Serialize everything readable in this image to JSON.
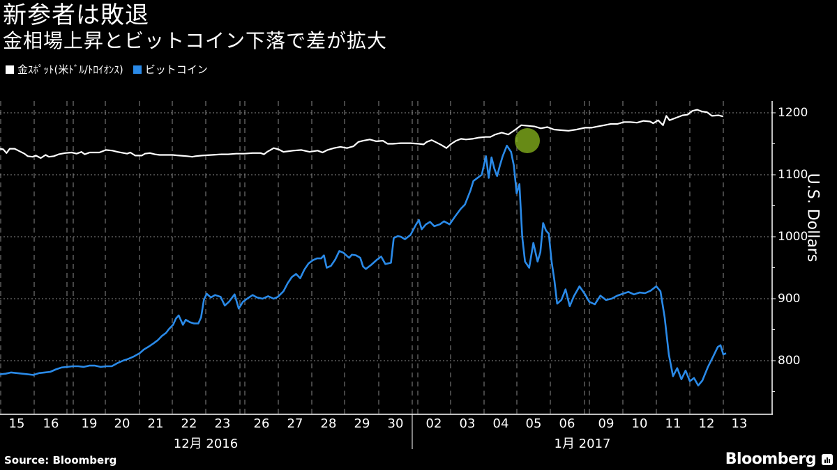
{
  "header": {
    "title": "新参者は敗退",
    "subtitle": "金相場上昇とビットコイン下落で差が拡大"
  },
  "legend": [
    {
      "label": "金ｽﾎﾟｯﾄ(米ﾄﾞﾙ/ﾄﾛｲｵﾝｽ)",
      "color": "#ffffff"
    },
    {
      "label": "ビットコイン",
      "color": "#2a8ae8"
    }
  ],
  "axis": {
    "ylabel": "U.S. Dollars",
    "yticks": [
      "1200",
      "1100",
      "1000",
      "900",
      "800"
    ],
    "xticks": [
      "15",
      "16",
      "19",
      "20",
      "21",
      "22",
      "23",
      "26",
      "27",
      "28",
      "29",
      "30",
      "02",
      "03",
      "04",
      "05",
      "06",
      "09",
      "10",
      "11",
      "12",
      "13"
    ],
    "months": [
      "12月 2016",
      "1月 2017"
    ]
  },
  "footer": {
    "source": "Source: Bloomberg",
    "brand": "Bloomberg"
  },
  "colors": {
    "background": "#000000",
    "gold_line": "#ffffff",
    "bitcoin_line": "#2a8ae8",
    "highlight": "#8ab81e",
    "grid": "#8a8a8a"
  },
  "chart_data": {
    "type": "line",
    "title": "新参者は敗退",
    "subtitle": "金相場上昇とビットコイン下落で差が拡大",
    "xlabel": "",
    "ylabel": "U.S. Dollars",
    "ylim": [
      735,
      1250
    ],
    "yticks": [
      800,
      900,
      1000,
      1100,
      1200
    ],
    "grid": true,
    "legend_position": "top-left",
    "categories": [
      "12/15",
      "12/16",
      "12/19",
      "12/20",
      "12/21",
      "12/22",
      "12/23",
      "12/26",
      "12/27",
      "12/28",
      "12/29",
      "12/30",
      "01/02",
      "01/03",
      "01/04",
      "01/05",
      "01/06",
      "01/09",
      "01/10",
      "01/11",
      "01/12",
      "01/13"
    ],
    "x_note": "x values are in trading-day units: 0 = start of 12/15, each integer = one trading day boundary",
    "series": [
      {
        "name": "金ｽﾎﾟｯﾄ(米ﾄﾞﾙ/ﾄﾛｲｵﾝｽ)",
        "color": "#ffffff",
        "points": [
          [
            0.0,
            1142
          ],
          [
            0.1,
            1141
          ],
          [
            0.2,
            1135
          ],
          [
            0.3,
            1142
          ],
          [
            0.45,
            1142
          ],
          [
            0.6,
            1138
          ],
          [
            0.75,
            1134
          ],
          [
            0.85,
            1130
          ],
          [
            1.0,
            1129
          ],
          [
            1.1,
            1131
          ],
          [
            1.25,
            1127
          ],
          [
            1.4,
            1132
          ],
          [
            1.5,
            1129
          ],
          [
            1.65,
            1130
          ],
          [
            1.8,
            1133
          ],
          [
            2.0,
            1135
          ],
          [
            2.2,
            1136
          ],
          [
            2.35,
            1134
          ],
          [
            2.5,
            1137
          ],
          [
            2.6,
            1133
          ],
          [
            2.75,
            1136
          ],
          [
            2.9,
            1136
          ],
          [
            3.05,
            1136
          ],
          [
            3.25,
            1140
          ],
          [
            3.45,
            1139
          ],
          [
            3.6,
            1137
          ],
          [
            3.8,
            1135
          ],
          [
            3.9,
            1134
          ],
          [
            4.0,
            1136
          ],
          [
            4.15,
            1131
          ],
          [
            4.35,
            1131
          ],
          [
            4.45,
            1134
          ],
          [
            4.6,
            1135
          ],
          [
            4.75,
            1133
          ],
          [
            4.9,
            1132
          ],
          [
            5.05,
            1132
          ],
          [
            5.3,
            1132
          ],
          [
            5.5,
            1131
          ],
          [
            5.75,
            1130
          ],
          [
            5.9,
            1129
          ],
          [
            6.0,
            1130
          ],
          [
            6.2,
            1131
          ],
          [
            6.5,
            1132
          ],
          [
            6.8,
            1133
          ],
          [
            7.0,
            1133
          ],
          [
            7.25,
            1134
          ],
          [
            7.5,
            1134
          ],
          [
            7.75,
            1135
          ],
          [
            8.0,
            1135
          ],
          [
            8.1,
            1133
          ],
          [
            8.2,
            1137
          ],
          [
            8.3,
            1140
          ],
          [
            8.4,
            1143
          ],
          [
            8.55,
            1141
          ],
          [
            8.7,
            1137
          ],
          [
            9.0,
            1139
          ],
          [
            9.25,
            1140
          ],
          [
            9.5,
            1137
          ],
          [
            9.75,
            1139
          ],
          [
            9.9,
            1136
          ],
          [
            10.05,
            1140
          ],
          [
            10.25,
            1143
          ],
          [
            10.45,
            1145
          ],
          [
            10.65,
            1143
          ],
          [
            10.85,
            1146
          ],
          [
            11.0,
            1153
          ],
          [
            11.15,
            1155
          ],
          [
            11.35,
            1157
          ],
          [
            11.55,
            1154
          ],
          [
            11.75,
            1155
          ],
          [
            11.9,
            1150
          ],
          [
            12.05,
            1150
          ],
          [
            12.3,
            1151
          ],
          [
            12.6,
            1151
          ],
          [
            12.85,
            1150
          ],
          [
            13.0,
            1149
          ],
          [
            13.1,
            1153
          ],
          [
            13.25,
            1156
          ],
          [
            13.4,
            1152
          ],
          [
            13.55,
            1148
          ],
          [
            13.7,
            1143
          ],
          [
            13.85,
            1150
          ],
          [
            14.0,
            1155
          ],
          [
            14.15,
            1158
          ],
          [
            14.3,
            1157
          ],
          [
            14.5,
            1158
          ],
          [
            14.7,
            1160
          ],
          [
            14.9,
            1161
          ],
          [
            15.05,
            1161
          ],
          [
            15.2,
            1165
          ],
          [
            15.4,
            1168
          ],
          [
            15.6,
            1165
          ],
          [
            15.8,
            1172
          ],
          [
            16.0,
            1180
          ],
          [
            16.2,
            1179
          ],
          [
            16.4,
            1178
          ],
          [
            16.6,
            1175
          ],
          [
            16.8,
            1177
          ],
          [
            17.0,
            1173
          ],
          [
            17.2,
            1172
          ],
          [
            17.45,
            1171
          ],
          [
            17.7,
            1173
          ],
          [
            17.95,
            1176
          ],
          [
            18.15,
            1176
          ],
          [
            18.35,
            1178
          ],
          [
            18.55,
            1180
          ],
          [
            18.75,
            1182
          ],
          [
            18.95,
            1182
          ],
          [
            19.15,
            1185
          ],
          [
            19.35,
            1185
          ],
          [
            19.55,
            1184
          ],
          [
            19.75,
            1187
          ],
          [
            19.95,
            1186
          ],
          [
            20.05,
            1183
          ],
          [
            20.2,
            1188
          ],
          [
            20.35,
            1180
          ],
          [
            20.45,
            1195
          ],
          [
            20.55,
            1188
          ],
          [
            20.75,
            1192
          ],
          [
            20.95,
            1196
          ],
          [
            21.1,
            1197
          ],
          [
            21.25,
            1203
          ],
          [
            21.4,
            1205
          ],
          [
            21.55,
            1202
          ],
          [
            21.7,
            1201
          ],
          [
            21.85,
            1195
          ],
          [
            22.05,
            1196
          ],
          [
            22.2,
            1194
          ]
        ]
      },
      {
        "name": "ビットコイン",
        "color": "#2a8ae8",
        "points": [
          [
            0.0,
            778
          ],
          [
            0.2,
            779
          ],
          [
            0.4,
            781
          ],
          [
            0.6,
            780
          ],
          [
            0.8,
            779
          ],
          [
            1.0,
            778
          ],
          [
            1.2,
            777
          ],
          [
            1.4,
            780
          ],
          [
            1.6,
            781
          ],
          [
            1.8,
            782
          ],
          [
            2.0,
            786
          ],
          [
            2.2,
            789
          ],
          [
            2.4,
            790
          ],
          [
            2.6,
            791
          ],
          [
            2.8,
            791
          ],
          [
            3.0,
            790
          ],
          [
            3.2,
            792
          ],
          [
            3.4,
            792
          ],
          [
            3.6,
            790
          ],
          [
            3.8,
            791
          ],
          [
            4.0,
            791
          ],
          [
            4.2,
            796
          ],
          [
            4.4,
            800
          ],
          [
            4.6,
            803
          ],
          [
            4.8,
            807
          ],
          [
            5.0,
            812
          ],
          [
            5.15,
            818
          ],
          [
            5.3,
            822
          ],
          [
            5.5,
            828
          ],
          [
            5.65,
            833
          ],
          [
            5.8,
            840
          ],
          [
            5.95,
            845
          ],
          [
            6.05,
            851
          ],
          [
            6.2,
            858
          ],
          [
            6.3,
            868
          ],
          [
            6.4,
            873
          ],
          [
            6.55,
            858
          ],
          [
            6.65,
            866
          ],
          [
            6.8,
            862
          ],
          [
            6.95,
            860
          ],
          [
            7.1,
            860
          ],
          [
            7.2,
            870
          ],
          [
            7.3,
            898
          ],
          [
            7.4,
            908
          ],
          [
            7.55,
            902
          ],
          [
            7.7,
            906
          ],
          [
            7.9,
            903
          ],
          [
            8.05,
            889
          ],
          [
            8.2,
            895
          ],
          [
            8.4,
            907
          ],
          [
            8.55,
            884
          ],
          [
            8.7,
            895
          ],
          [
            8.85,
            900
          ],
          [
            9.05,
            906
          ],
          [
            9.2,
            902
          ],
          [
            9.4,
            900
          ],
          [
            9.6,
            904
          ],
          [
            9.8,
            900
          ],
          [
            9.95,
            903
          ],
          [
            10.15,
            912
          ],
          [
            10.3,
            925
          ],
          [
            10.45,
            935
          ],
          [
            10.6,
            940
          ],
          [
            10.75,
            933
          ],
          [
            10.9,
            947
          ],
          [
            11.05,
            957
          ],
          [
            11.2,
            962
          ],
          [
            11.35,
            965
          ],
          [
            11.5,
            965
          ],
          [
            11.6,
            970
          ],
          [
            11.7,
            950
          ],
          [
            11.85,
            953
          ],
          [
            12.0,
            963
          ],
          [
            12.15,
            977
          ],
          [
            12.3,
            974
          ],
          [
            12.5,
            966
          ],
          [
            12.6,
            971
          ],
          [
            12.75,
            970
          ],
          [
            12.9,
            966
          ],
          [
            13.0,
            952
          ],
          [
            13.1,
            948
          ],
          [
            13.3,
            955
          ],
          [
            13.5,
            963
          ],
          [
            13.65,
            968
          ],
          [
            13.8,
            956
          ],
          [
            14.0,
            958
          ],
          [
            14.1,
            998
          ],
          [
            14.25,
            1001
          ],
          [
            14.35,
            1000
          ],
          [
            14.5,
            996
          ],
          [
            14.7,
            1003
          ],
          [
            14.9,
            1020
          ],
          [
            15.0,
            1027
          ],
          [
            15.1,
            1012
          ],
          [
            15.25,
            1020
          ],
          [
            15.4,
            1024
          ],
          [
            15.55,
            1017
          ],
          [
            15.75,
            1020
          ],
          [
            15.9,
            1025
          ],
          [
            16.1,
            1020
          ],
          [
            16.3,
            1033
          ],
          [
            16.5,
            1045
          ],
          [
            16.65,
            1052
          ],
          [
            16.85,
            1075
          ],
          [
            16.95,
            1090
          ],
          [
            17.1,
            1095
          ],
          [
            17.25,
            1100
          ],
          [
            17.4,
            1130
          ],
          [
            17.5,
            1095
          ],
          [
            17.6,
            1128
          ],
          [
            17.7,
            1110
          ],
          [
            17.8,
            1098
          ],
          [
            17.9,
            1115
          ],
          [
            18.0,
            1130
          ],
          [
            18.15,
            1147
          ],
          [
            18.3,
            1137
          ],
          [
            18.4,
            1115
          ],
          [
            18.5,
            1070
          ],
          [
            18.6,
            1085
          ],
          [
            18.7,
            1000
          ],
          [
            18.8,
            960
          ],
          [
            18.95,
            950
          ],
          [
            19.1,
            990
          ],
          [
            19.25,
            960
          ],
          [
            19.35,
            975
          ],
          [
            19.45,
            1022
          ],
          [
            19.55,
            1010
          ],
          [
            19.65,
            1005
          ],
          [
            19.75,
            960
          ],
          [
            19.85,
            930
          ],
          [
            19.95,
            892
          ],
          [
            20.1,
            898
          ],
          [
            20.25,
            915
          ],
          [
            20.4,
            888
          ],
          [
            20.55,
            904
          ],
          [
            20.75,
            920
          ],
          [
            20.95,
            907
          ]
        ],
        "points_tail": [
          [
            21.1,
            895
          ],
          [
            21.3,
            891
          ],
          [
            21.5,
            905
          ],
          [
            21.7,
            898
          ],
          [
            21.9,
            900
          ],
          [
            22.1,
            905
          ],
          [
            22.3,
            908
          ],
          [
            22.5,
            911
          ],
          [
            22.7,
            907
          ],
          [
            22.9,
            910
          ],
          [
            23.1,
            909
          ],
          [
            23.3,
            913
          ],
          [
            23.5,
            920
          ],
          [
            23.65,
            912
          ],
          [
            23.8,
            870
          ],
          [
            23.95,
            810
          ],
          [
            24.1,
            775
          ],
          [
            24.25,
            788
          ],
          [
            24.4,
            770
          ],
          [
            24.55,
            784
          ],
          [
            24.7,
            767
          ],
          [
            24.85,
            772
          ],
          [
            25.0,
            760
          ],
          [
            25.15,
            768
          ],
          [
            25.35,
            790
          ],
          [
            25.55,
            808
          ],
          [
            25.7,
            822
          ],
          [
            25.8,
            825
          ],
          [
            25.9,
            810
          ],
          [
            26.0,
            812
          ]
        ]
      }
    ],
    "annotations": [
      {
        "type": "circle",
        "label": "gold-bitcoin-crossover-highlight",
        "x_category": "01/05",
        "value": 1155,
        "color": "#8ab81e"
      }
    ]
  }
}
